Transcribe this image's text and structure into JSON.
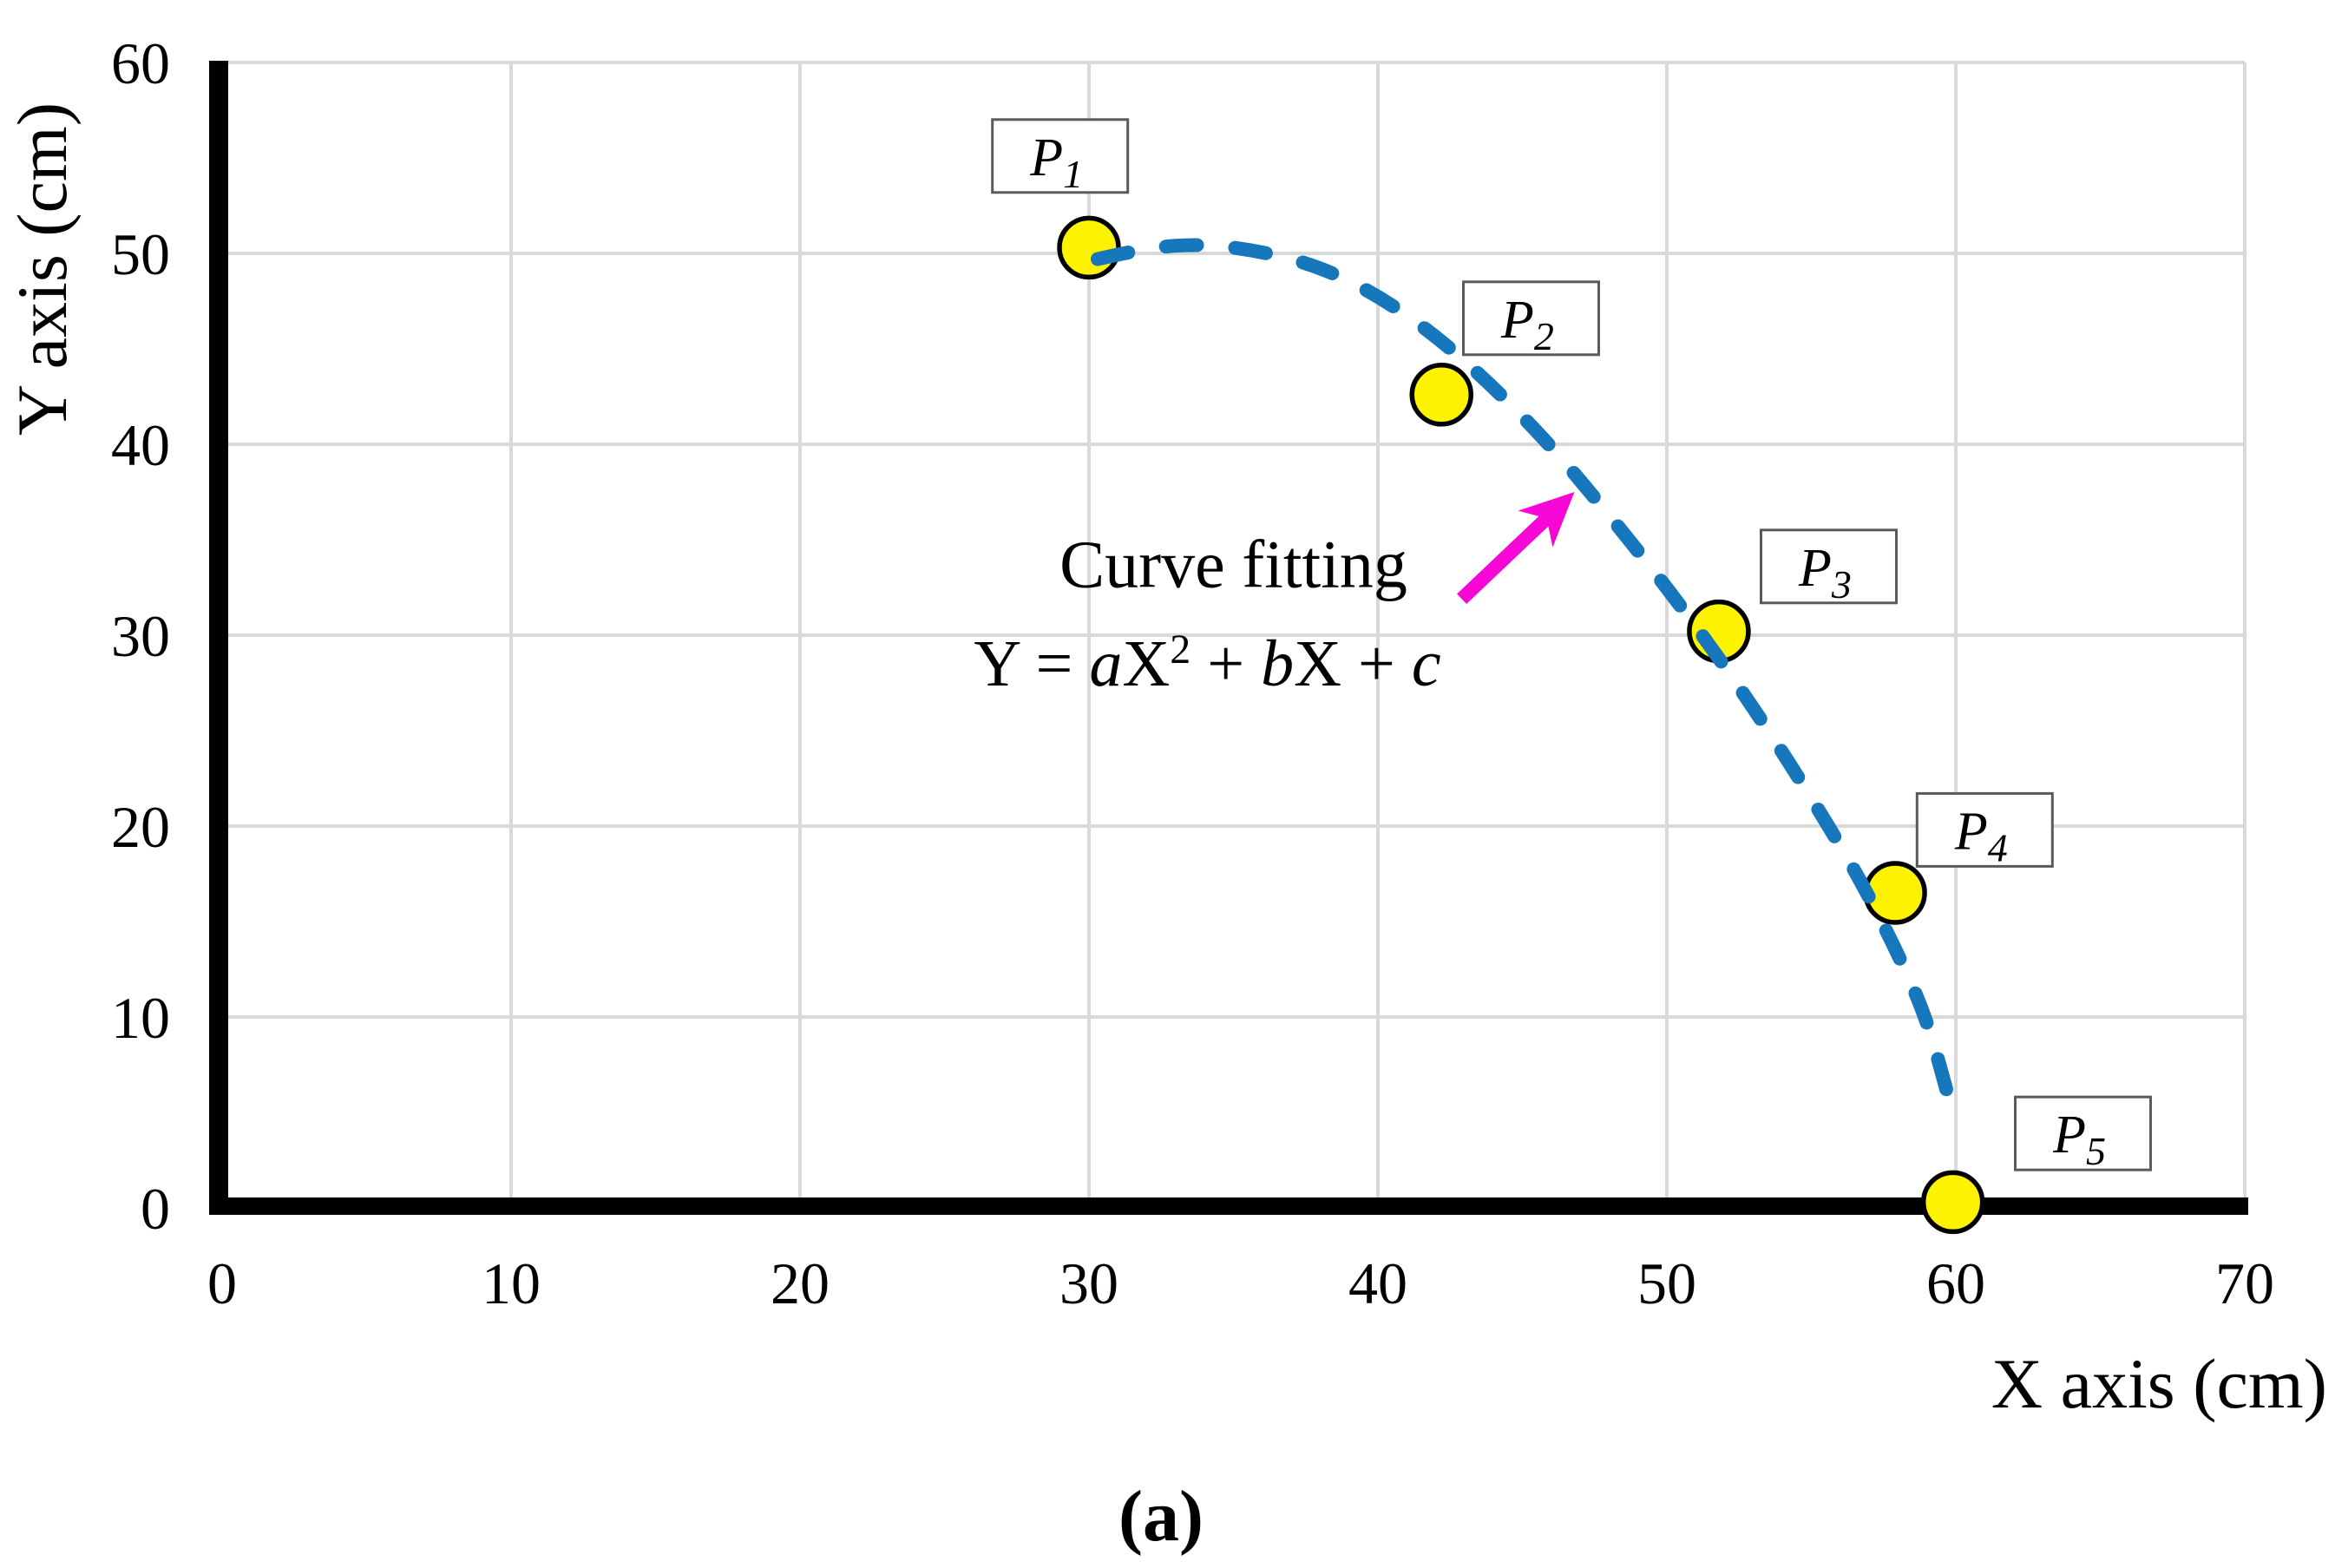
{
  "figure": {
    "caption": "(a)"
  },
  "chart_data": {
    "type": "scatter",
    "title": "",
    "xlabel": "X axis (cm)",
    "ylabel": "Y axis (cm)",
    "xlim": [
      0,
      70
    ],
    "ylim": [
      0,
      60
    ],
    "x_ticks": [
      0,
      10,
      20,
      30,
      40,
      50,
      60,
      70
    ],
    "y_ticks": [
      0,
      10,
      20,
      30,
      40,
      50,
      60
    ],
    "grid": true,
    "legend_position": "none",
    "points": [
      {
        "label": "P",
        "subscript": "1",
        "x": 30,
        "y": 50.3,
        "box_center": [
          29.0,
          55.1
        ]
      },
      {
        "label": "P",
        "subscript": "2",
        "x": 42.2,
        "y": 42.6,
        "box_center": [
          45.3,
          46.6
        ]
      },
      {
        "label": "P",
        "subscript": "3",
        "x": 51.8,
        "y": 30.2,
        "box_center": [
          55.6,
          33.6
        ]
      },
      {
        "label": "P",
        "subscript": "4",
        "x": 57.9,
        "y": 16.5,
        "box_center": [
          61.0,
          19.8
        ]
      },
      {
        "label": "P",
        "subscript": "5",
        "x": 59.9,
        "y": 0.3,
        "box_center": [
          64.4,
          3.9
        ]
      }
    ],
    "fit_curve": {
      "style": "dashed",
      "samples": [
        [
          30.3,
          49.7
        ],
        [
          32,
          50.3
        ],
        [
          34,
          50.5
        ],
        [
          36,
          50.1
        ],
        [
          38,
          49.3
        ],
        [
          40,
          47.8
        ],
        [
          42,
          45.7
        ],
        [
          44,
          43.0
        ],
        [
          46,
          39.9
        ],
        [
          48,
          36.3
        ],
        [
          50,
          32.5
        ],
        [
          52,
          28.4
        ],
        [
          54,
          23.9
        ],
        [
          56,
          19.0
        ],
        [
          57,
          16.3
        ],
        [
          58,
          13.3
        ],
        [
          59,
          9.9
        ],
        [
          59.8,
          5.5
        ]
      ],
      "equation_parts": [
        {
          "text": "Y = ",
          "italic": false,
          "sup": false
        },
        {
          "text": "a",
          "italic": true,
          "sup": false
        },
        {
          "text": "X",
          "italic": false,
          "sup": false
        },
        {
          "text": "2",
          "italic": false,
          "sup": true
        },
        {
          "text": " + ",
          "italic": false,
          "sup": false
        },
        {
          "text": "b",
          "italic": true,
          "sup": false
        },
        {
          "text": "X",
          "italic": false,
          "sup": false
        },
        {
          "text": " + ",
          "italic": false,
          "sup": false
        },
        {
          "text": "c",
          "italic": true,
          "sup": false
        }
      ]
    },
    "annotation": {
      "label": "Curve fitting",
      "label_center": [
        35.0,
        33.8
      ],
      "equation_center": [
        34.1,
        28.6
      ],
      "arrow_tail": [
        42.9,
        31.9
      ],
      "arrow_tip": [
        46.8,
        37.5
      ]
    },
    "colors": {
      "curve": "#1777bd",
      "marker_fill": "#fdf300",
      "marker_stroke": "#000000",
      "arrow": "#f707d5",
      "grid": "#d9d9d9",
      "axis": "#000000",
      "box_border": "#5a5a5a",
      "box_fill": "#ffffff",
      "text": "#000000"
    }
  }
}
